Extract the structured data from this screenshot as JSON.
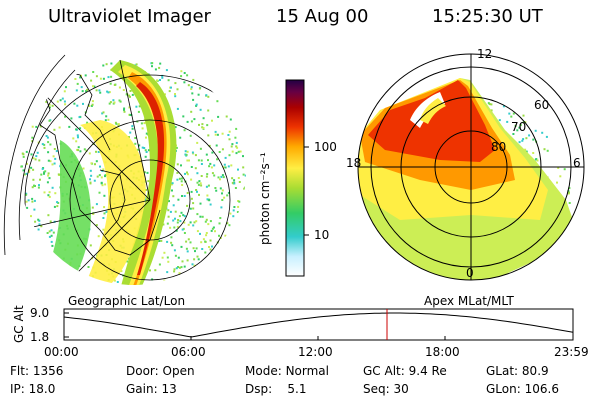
{
  "header": {
    "instrument": "Ultraviolet Imager",
    "date": "15 Aug 00",
    "time": "15:25:30 UT"
  },
  "colorbar": {
    "unit_label": "photon cm⁻²s⁻¹",
    "tick_labels": [
      "100",
      "10"
    ]
  },
  "polar": {
    "mlt_labels": [
      "12",
      "18",
      "6",
      "0"
    ],
    "lat_labels": [
      "60",
      "70",
      "80"
    ]
  },
  "panels": {
    "left_caption": "Geographic Lat/Lon",
    "right_caption": "Apex MLat/MLT"
  },
  "alt_plot": {
    "axis_label": "GC Alt",
    "y_ticks": [
      "9.0",
      "1.8"
    ],
    "x_ticks": [
      "00:00",
      "06:00",
      "12:00",
      "18:00",
      "23:59"
    ],
    "cursor_color": "#cc0000"
  },
  "footer": {
    "rows": [
      [
        {
          "label": "Flt:",
          "value": "1356"
        },
        {
          "label": "Door:",
          "value": "Open"
        },
        {
          "label": "Mode:",
          "value": "Normal"
        },
        {
          "label": "GC Alt:",
          "value": "9.4 Re"
        },
        {
          "label": "GLat:",
          "value": "80.9"
        }
      ],
      [
        {
          "label": "IP:",
          "value": "18.0"
        },
        {
          "label": "Gain:",
          "value": "13"
        },
        {
          "label": "Dsp:",
          "value": "5.1"
        },
        {
          "label": "Seq:",
          "value": "30"
        },
        {
          "label": "GLon:",
          "value": "106.6"
        }
      ]
    ]
  }
}
